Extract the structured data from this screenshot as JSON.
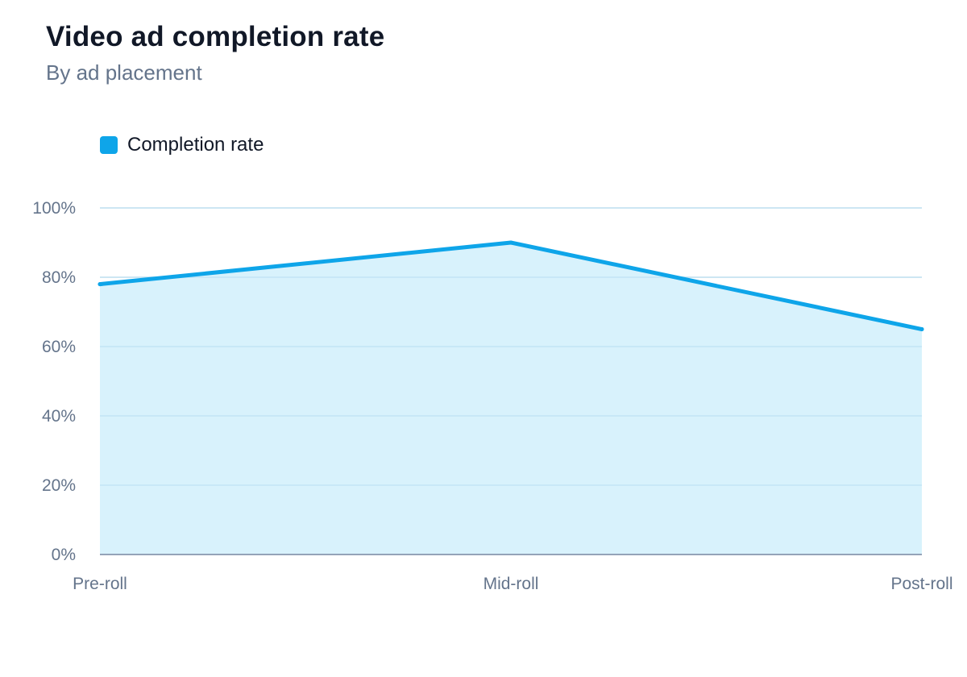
{
  "title": "Video ad completion rate",
  "subtitle": "By ad placement",
  "colors": {
    "line": "#0ea5e9",
    "fill": "#d4f1fc",
    "grid": "#e2e8f0",
    "axis": "#94a3b8"
  },
  "chart_data": {
    "type": "area",
    "categories": [
      "Pre-roll",
      "Mid-roll",
      "Post-roll"
    ],
    "series": [
      {
        "name": "Completion rate",
        "values": [
          78,
          90,
          65
        ]
      }
    ],
    "y_ticks": [
      "0%",
      "20%",
      "40%",
      "60%",
      "80%",
      "100%"
    ],
    "ylim": [
      0,
      100
    ],
    "grid": true,
    "legend_position": "top-left"
  }
}
